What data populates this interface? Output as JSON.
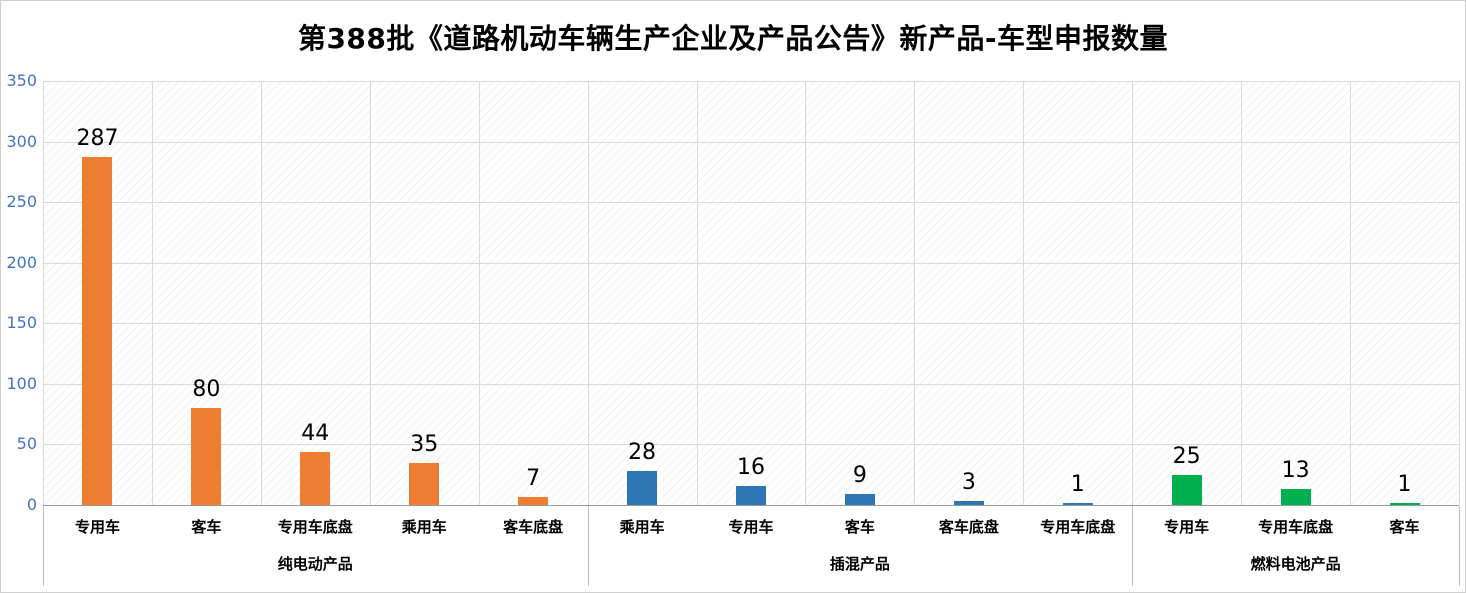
{
  "chart_data": {
    "type": "bar",
    "title": "第388批《道路机动车辆生产企业及产品公告》新产品-车型申报数量",
    "xlabel": "",
    "ylabel": "",
    "ylim": [
      0,
      350
    ],
    "yticks": [
      0,
      50,
      100,
      150,
      200,
      250,
      300,
      350
    ],
    "grid": true,
    "legend": "none",
    "axis_tick_color": "#4472C4",
    "gridline_color": "#d9d9d9",
    "groups": [
      {
        "label": "纯电动产品",
        "color": "#ED7D31",
        "categories": [
          "专用车",
          "客车",
          "专用车底盘",
          "乘用车",
          "客车底盘"
        ],
        "values": [
          287,
          80,
          44,
          35,
          7
        ]
      },
      {
        "label": "插混产品",
        "color": "#2E75B6",
        "categories": [
          "乘用车",
          "专用车",
          "客车",
          "客车底盘",
          "专用车底盘"
        ],
        "values": [
          28,
          16,
          9,
          3,
          1
        ]
      },
      {
        "label": "燃料电池产品",
        "color": "#00B050",
        "categories": [
          "专用车",
          "专用车底盘",
          "客车"
        ],
        "values": [
          25,
          13,
          1
        ]
      }
    ]
  }
}
